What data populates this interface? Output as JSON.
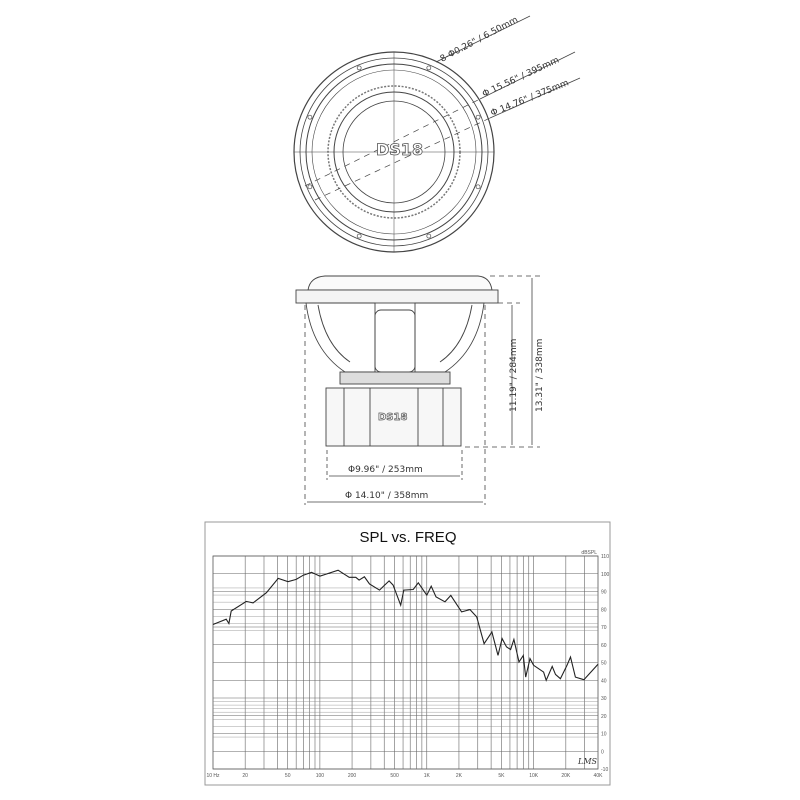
{
  "top_view": {
    "logo": "DS18",
    "dims": {
      "mount_holes": "8-Φ0.26\" / 6.50mm",
      "outer_diameter": "Φ 15.56\" / 395mm",
      "bolt_circle": "Φ 14.76\" / 375mm"
    }
  },
  "side_view": {
    "logo": "DS18",
    "dims": {
      "mount_depth": "11.19\" / 284mm",
      "total_height": "13.31\" / 338mm",
      "magnet_diameter": "Φ9.96\" / 253mm",
      "cutout_diameter": "Φ 14.10\" / 358mm"
    }
  },
  "chart_data": {
    "type": "line",
    "title": "SPL vs. FREQ",
    "ylabel": "dBSPL",
    "xlabel": "",
    "xscale": "log",
    "xlim": [
      10,
      40000
    ],
    "ylim": [
      -10,
      110
    ],
    "grid": true,
    "x_tick_labels": [
      "10 Hz",
      "20",
      "50",
      "100",
      "200",
      "500",
      "1K",
      "2K",
      "5K",
      "10K",
      "20K",
      "40K"
    ],
    "x_tick_values": [
      10,
      20,
      50,
      100,
      200,
      500,
      1000,
      2000,
      5000,
      10000,
      20000,
      40000
    ],
    "y_ticks": [
      110,
      100,
      90,
      80,
      70,
      60,
      50,
      40,
      30,
      20,
      10,
      0,
      -10
    ],
    "watermark": "LMS",
    "series": [
      {
        "x": [
          10,
          13.3,
          14.1,
          14.8,
          20.5,
          23.7,
          31.6,
          40.7,
          50.3,
          60,
          69.9,
          83.5,
          100,
          148,
          188,
          217,
          233,
          261,
          291,
          361,
          444,
          484,
          570,
          610,
          747,
          834,
          1000,
          1100,
          1220,
          1480,
          1680,
          2120,
          2540,
          2930,
          3440,
          4070,
          4640,
          5070,
          5570,
          6080,
          6540,
          7300,
          8010,
          8420,
          9240,
          10000,
          12400,
          13100,
          14900,
          16000,
          17800,
          20500,
          22100,
          24600,
          29500,
          40000
        ],
        "y": [
          71.4,
          74.4,
          72,
          79,
          84.4,
          83.6,
          89.3,
          97.4,
          95.5,
          96.8,
          99.2,
          100.8,
          98.7,
          102,
          98,
          98,
          96.4,
          98.3,
          94.2,
          90.8,
          96,
          93.6,
          82.3,
          90.8,
          91.1,
          94.9,
          87.9,
          93,
          87,
          84.2,
          87.8,
          78.5,
          79.8,
          75.7,
          60.6,
          67.2,
          54,
          63.5,
          58.8,
          57.3,
          63,
          50.3,
          54,
          41.8,
          52.2,
          48.4,
          44.6,
          40,
          47.8,
          43.3,
          40.9,
          48.4,
          53.1,
          41.8,
          40.3,
          49
        ]
      }
    ]
  }
}
